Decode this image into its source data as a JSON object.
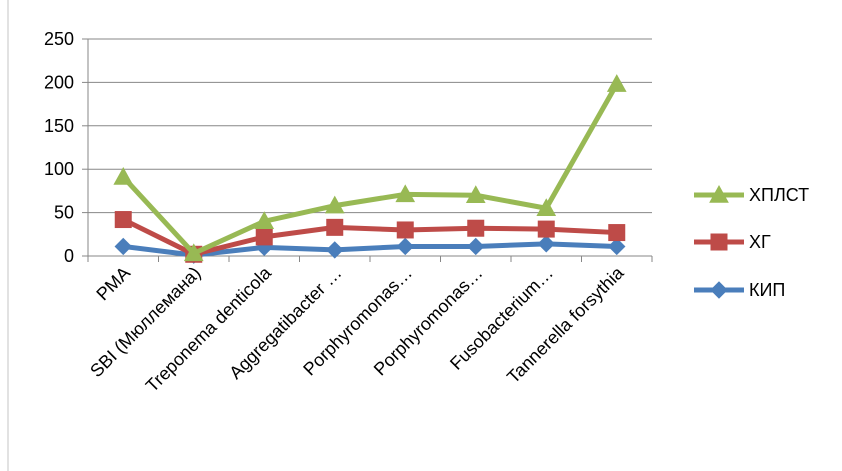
{
  "chart_data": {
    "type": "line",
    "title": "",
    "xlabel": "",
    "ylabel": "",
    "ylim": [
      0,
      250
    ],
    "yticks": [
      0,
      50,
      100,
      150,
      200,
      250
    ],
    "grid": true,
    "legend_position": "right",
    "categories": [
      "РМА",
      "SBI (Мюллемана)",
      "Treponema denticola",
      "Aggregatibacter …",
      "Porphyromonas…",
      "Porphyromonas…",
      "Fusobacterium…",
      "Tannerella forsythia"
    ],
    "series": [
      {
        "name": "КИП",
        "color": "#4a7ebb",
        "marker": "diamond",
        "values": [
          11,
          1,
          10,
          7,
          11,
          11,
          14,
          11
        ]
      },
      {
        "name": "ХГ",
        "color": "#be4b48",
        "marker": "square",
        "values": [
          42,
          2,
          22,
          33,
          30,
          32,
          31,
          27
        ]
      },
      {
        "name": "ХПЛСТ",
        "color": "#98b954",
        "marker": "triangle",
        "values": [
          91,
          3,
          40,
          58,
          71,
          70,
          55,
          198
        ]
      }
    ],
    "legend_order": [
      "ХПЛСТ",
      "ХГ",
      "КИП"
    ]
  }
}
